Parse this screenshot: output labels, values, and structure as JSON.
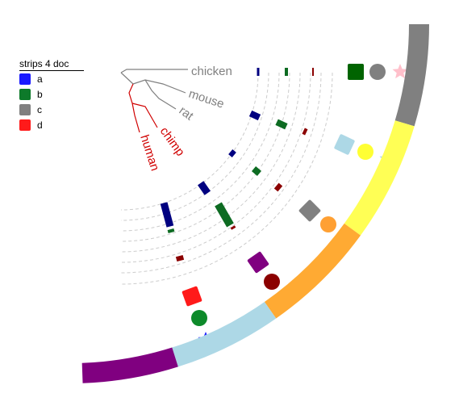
{
  "legend": {
    "title": "strips 4 doc",
    "items": [
      {
        "label": "a",
        "color": "#1a1aff"
      },
      {
        "label": "b",
        "color": "#0d7a2a"
      },
      {
        "label": "c",
        "color": "#808080"
      },
      {
        "label": "d",
        "color": "#ff1a1a"
      }
    ]
  },
  "tree": {
    "leaves": [
      {
        "label": "chicken",
        "color": "#808080"
      },
      {
        "label": "mouse",
        "color": "#808080"
      },
      {
        "label": "rat",
        "color": "#808080"
      },
      {
        "label": "chimp",
        "color": "#d00000"
      },
      {
        "label": "human",
        "color": "#d00000"
      }
    ]
  },
  "strips": {
    "colors": [
      "#808080",
      "#ffff55",
      "#ffaa33",
      "#add8e6",
      "#800080"
    ]
  },
  "bar_colors": {
    "navy": "#000080",
    "green": "#0d6b22",
    "darkred": "#8b0000"
  },
  "shapes": [
    {
      "row": "chicken",
      "square": "#006400",
      "circle": "#808080",
      "star": "#ffc0cb"
    },
    {
      "row": "rat",
      "square": "#add8e6",
      "circle": "#ffff33",
      "star": "#add8e6"
    },
    {
      "row": "chimp",
      "square": "#808080",
      "circle": "#ffa033",
      "star": "#ffc0cb"
    },
    {
      "row": "human-1",
      "square": "#800080",
      "circle": "#8b0000",
      "star": "#90ee90"
    },
    {
      "row": "human-2",
      "square": "#ff1a1a",
      "circle": "#0d8a2a",
      "star": "#1a1aff"
    }
  ]
}
